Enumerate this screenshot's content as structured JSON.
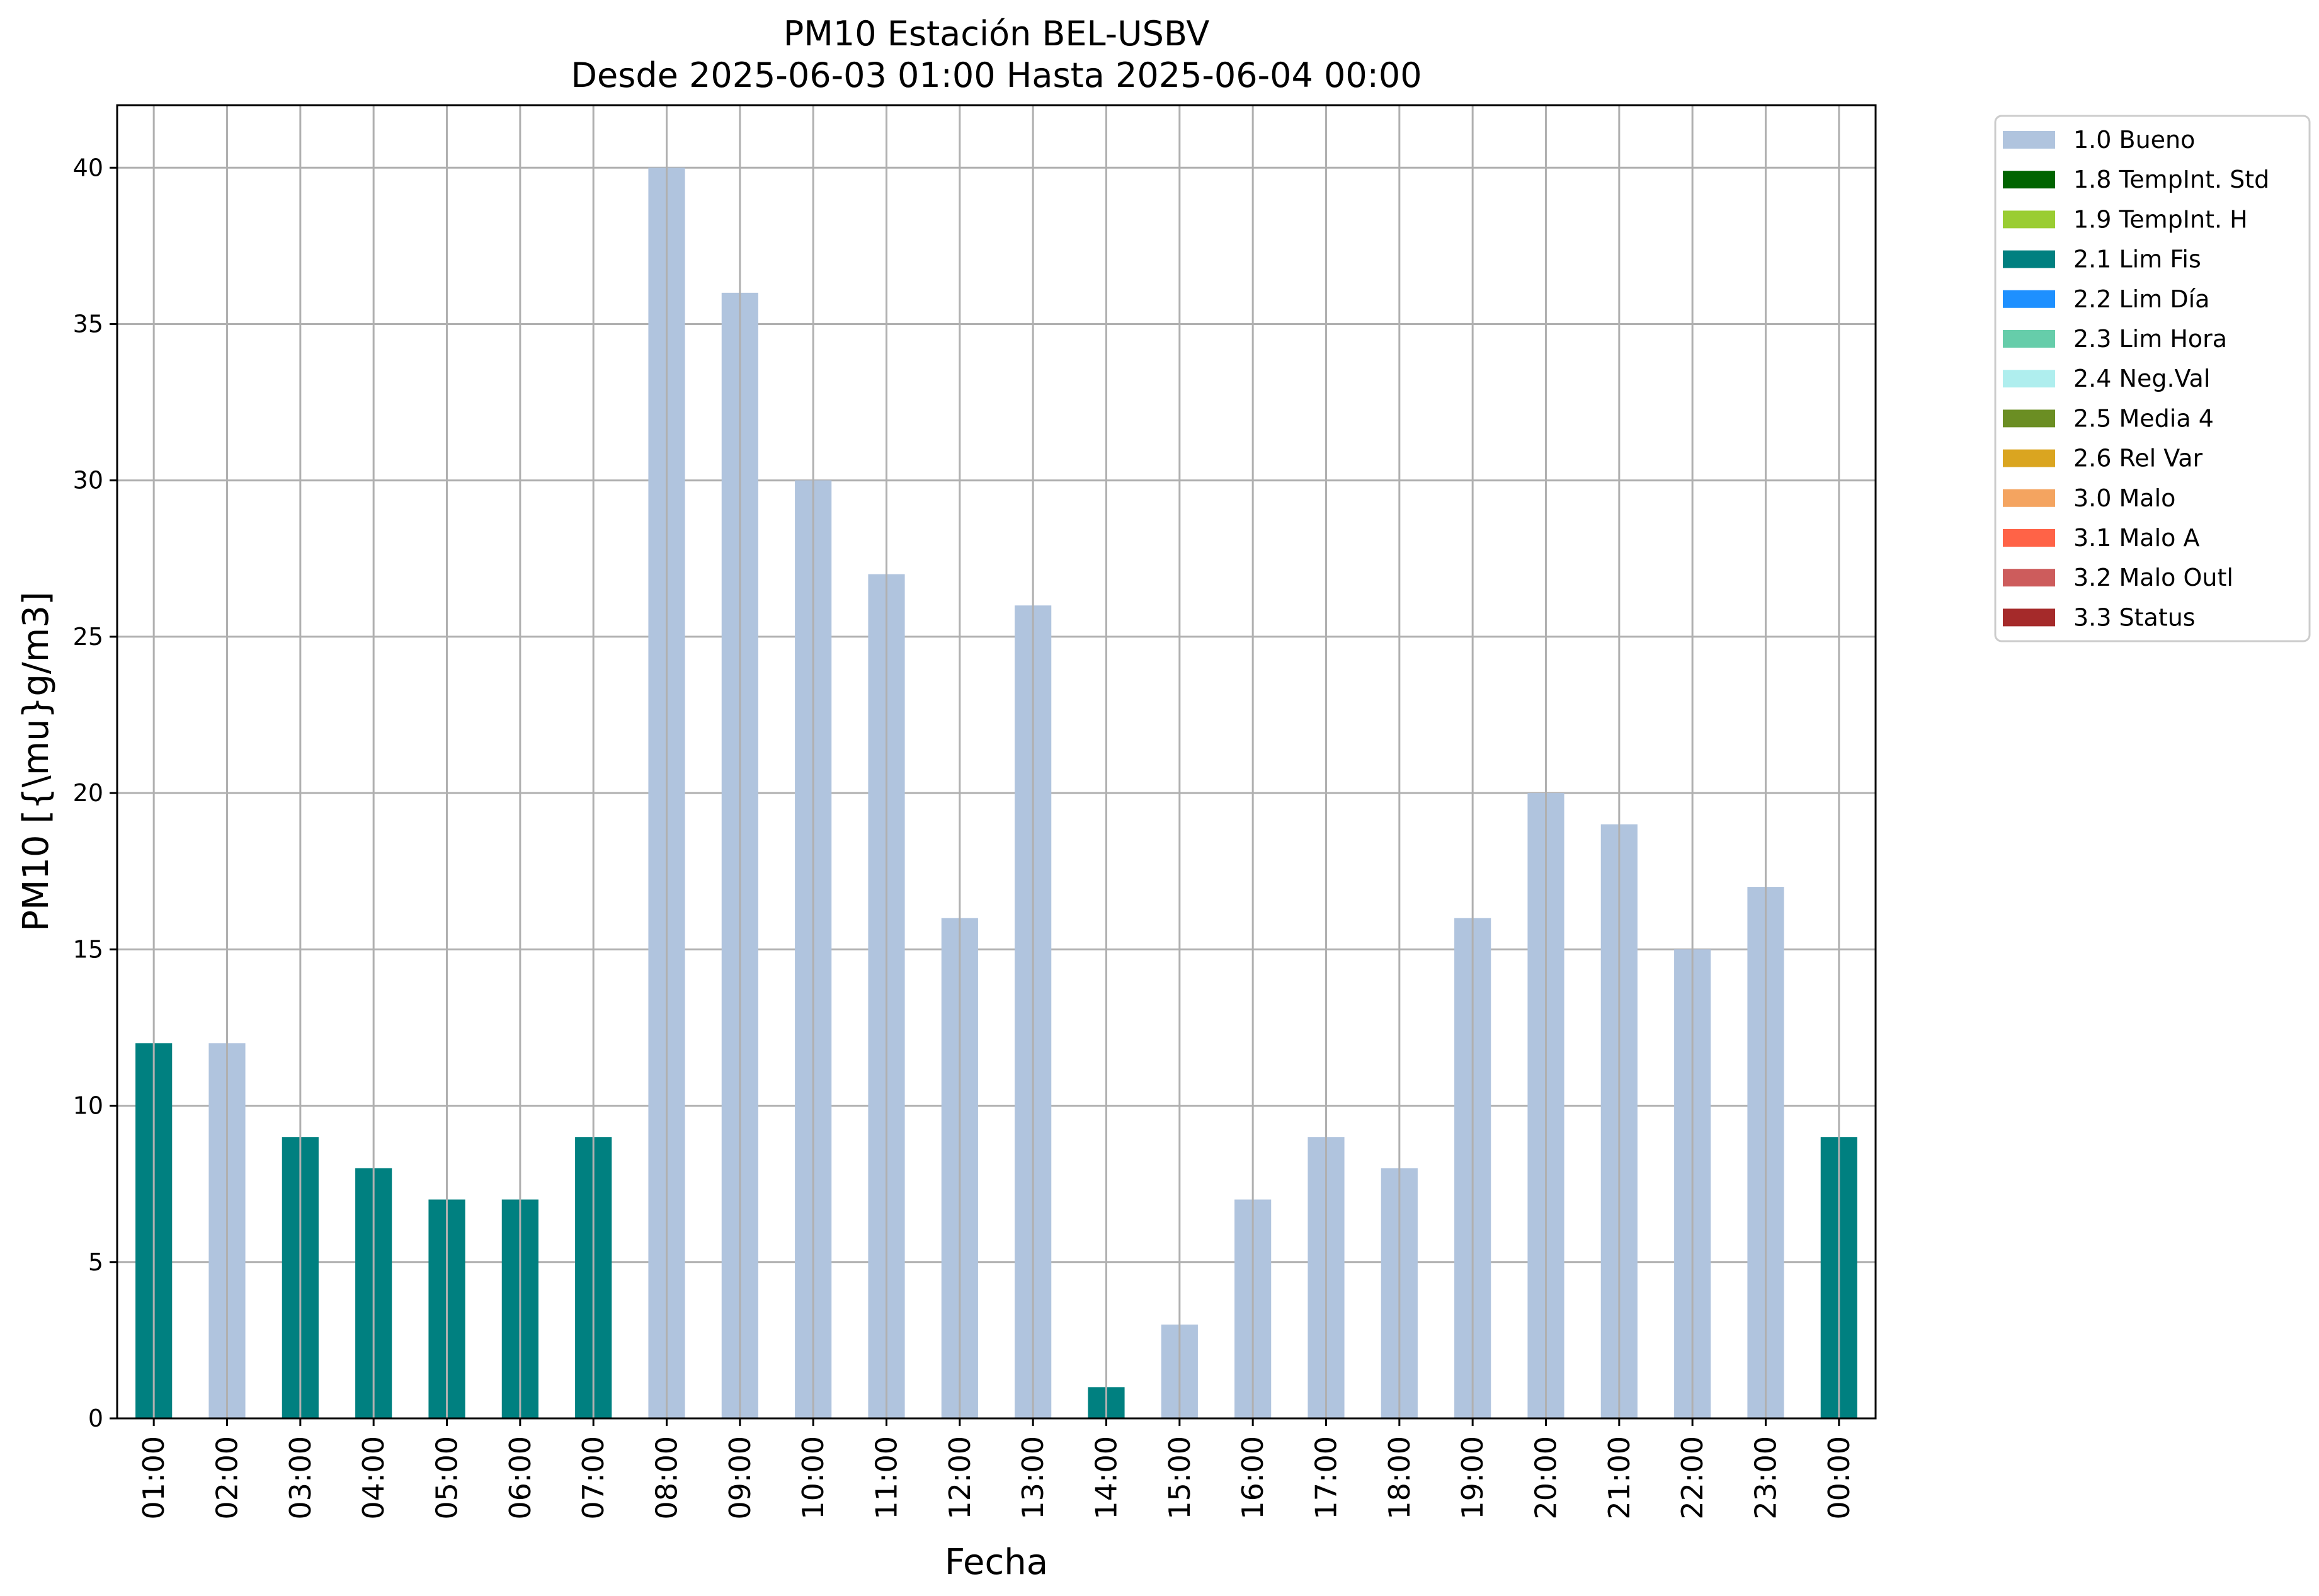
{
  "chart_data": {
    "type": "bar",
    "title": "PM10 Estación BEL-USBV",
    "subtitle": "Desde 2025-06-03 01:00 Hasta 2025-06-04 00:00",
    "xlabel": "Fecha",
    "ylabel": "PM10 [{\\mu}g/m3]",
    "ylim": [
      0,
      42
    ],
    "yticks": [
      0,
      5,
      10,
      15,
      20,
      25,
      30,
      35,
      40
    ],
    "grid": true,
    "legend_position": "outside-right",
    "categories": [
      "01:00",
      "02:00",
      "03:00",
      "04:00",
      "05:00",
      "06:00",
      "07:00",
      "08:00",
      "09:00",
      "10:00",
      "11:00",
      "12:00",
      "13:00",
      "14:00",
      "15:00",
      "16:00",
      "17:00",
      "18:00",
      "19:00",
      "20:00",
      "21:00",
      "22:00",
      "23:00",
      "00:00"
    ],
    "values": [
      12,
      12,
      9,
      8,
      7,
      7,
      9,
      40,
      36,
      30,
      27,
      16,
      26,
      1,
      3,
      7,
      9,
      8,
      16,
      20,
      19,
      15,
      17,
      9
    ],
    "flags": [
      "2.1 Lim Fis",
      "1.0 Bueno",
      "2.1 Lim Fis",
      "2.1 Lim Fis",
      "2.1 Lim Fis",
      "2.1 Lim Fis",
      "2.1 Lim Fis",
      "1.0 Bueno",
      "1.0 Bueno",
      "1.0 Bueno",
      "1.0 Bueno",
      "1.0 Bueno",
      "1.0 Bueno",
      "2.1 Lim Fis",
      "1.0 Bueno",
      "1.0 Bueno",
      "1.0 Bueno",
      "1.0 Bueno",
      "1.0 Bueno",
      "1.0 Bueno",
      "1.0 Bueno",
      "1.0 Bueno",
      "1.0 Bueno",
      "2.1 Lim Fis"
    ],
    "legend": [
      {
        "label": "1.0 Bueno",
        "color": "#b0c4de"
      },
      {
        "label": "1.8 TempInt. Std",
        "color": "#006400"
      },
      {
        "label": "1.9 TempInt. H",
        "color": "#9acd32"
      },
      {
        "label": "2.1 Lim Fis",
        "color": "#008080"
      },
      {
        "label": "2.2 Lim Día",
        "color": "#1e90ff"
      },
      {
        "label": "2.3 Lim Hora",
        "color": "#66cdaa"
      },
      {
        "label": "2.4 Neg.Val",
        "color": "#afeeee"
      },
      {
        "label": "2.5 Media 4",
        "color": "#6b8e23"
      },
      {
        "label": "2.6 Rel Var",
        "color": "#daa520"
      },
      {
        "label": "3.0 Malo",
        "color": "#f4a460"
      },
      {
        "label": "3.1 Malo A",
        "color": "#ff6347"
      },
      {
        "label": "3.2 Malo Outl",
        "color": "#cd5c5c"
      },
      {
        "label": "3.3 Status",
        "color": "#a52a2a"
      }
    ]
  }
}
